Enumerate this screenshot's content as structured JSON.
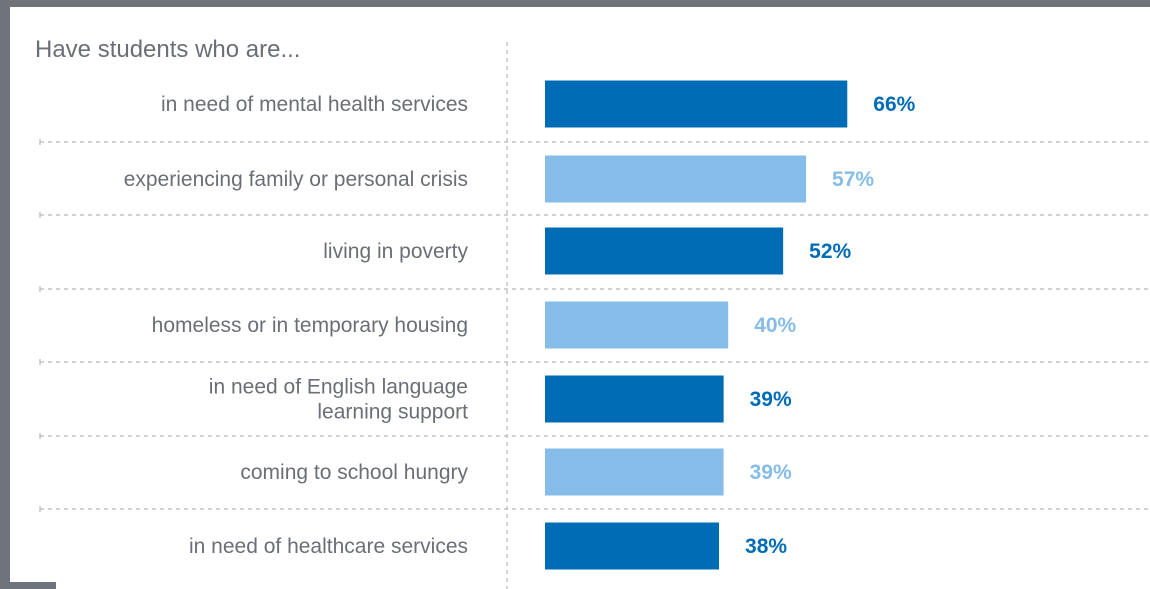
{
  "chart_data": {
    "type": "bar",
    "orientation": "horizontal",
    "title": "Have students who are...",
    "categories": [
      [
        "in need of mental health services"
      ],
      [
        "experiencing family or personal crisis"
      ],
      [
        "living in poverty"
      ],
      [
        "homeless or in temporary housing"
      ],
      [
        "in need of English language",
        "learning support"
      ],
      [
        "coming to school hungry"
      ],
      [
        "in need of healthcare services"
      ]
    ],
    "values": [
      66,
      57,
      52,
      40,
      39,
      39,
      38
    ],
    "value_labels": [
      "66%",
      "57%",
      "52%",
      "40%",
      "39%",
      "39%",
      "38%"
    ],
    "unit": "%",
    "xlim": [
      0,
      100
    ],
    "colors": [
      "#006cb6",
      "#85bde8",
      "#006cb6",
      "#85bde8",
      "#006cb6",
      "#85bde8",
      "#006cb6"
    ],
    "frame_color": "#6f747a",
    "grid_color": "#b5b8bc",
    "label_color": "#6b6f75"
  }
}
